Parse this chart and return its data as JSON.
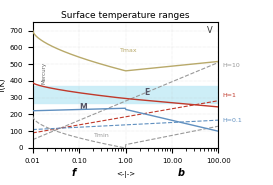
{
  "title": "Surface temperature ranges",
  "xlabel_left": "f",
  "xlabel_right": "b",
  "xlabel_center": "<-|->",
  "ylabel": "T(K)",
  "xlim": [
    0.01,
    100.0
  ],
  "ylim": [
    0,
    750
  ],
  "yticks": [
    0,
    100,
    200,
    300,
    400,
    500,
    600,
    700
  ],
  "xticks": [
    0.01,
    0.1,
    1.0,
    10.0,
    100.0
  ],
  "xticklabels": [
    "0.01",
    "0.10",
    "1.00",
    "10.00",
    "100.00"
  ],
  "habitable_zone": [
    270,
    370
  ],
  "habitable_color": "#c8edf7",
  "label_V": "V",
  "label_Mercury": "Mercury",
  "label_M": "M",
  "label_E": "E",
  "label_Tmax": "Tmax",
  "label_Tmin": "Tmin",
  "label_H10": "H=10",
  "label_H1": "H=1",
  "label_H01": "H=0.1",
  "color_tmax": "#b8a96a",
  "color_tmin": "#999999",
  "color_red": "#c0392b",
  "color_blue": "#6090c0",
  "color_dark": "#555566",
  "color_h10": "#999999",
  "color_h1": "#c0392b",
  "color_h01": "#6090c0"
}
